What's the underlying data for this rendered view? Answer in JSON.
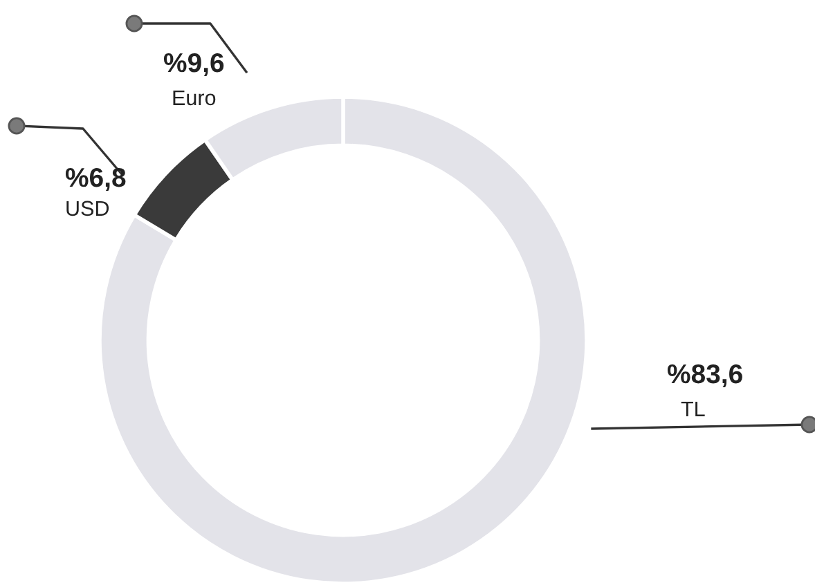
{
  "chart_data": {
    "type": "donut",
    "categories": [
      "TL",
      "USD",
      "Euro"
    ],
    "values": [
      83.6,
      6.8,
      9.6
    ],
    "colors": [
      "#e3e3e9",
      "#3a3a3a",
      "#e3e3e9"
    ],
    "value_labels": [
      "%83,6",
      "%6,8",
      "%9,6"
    ],
    "legend": false
  }
}
